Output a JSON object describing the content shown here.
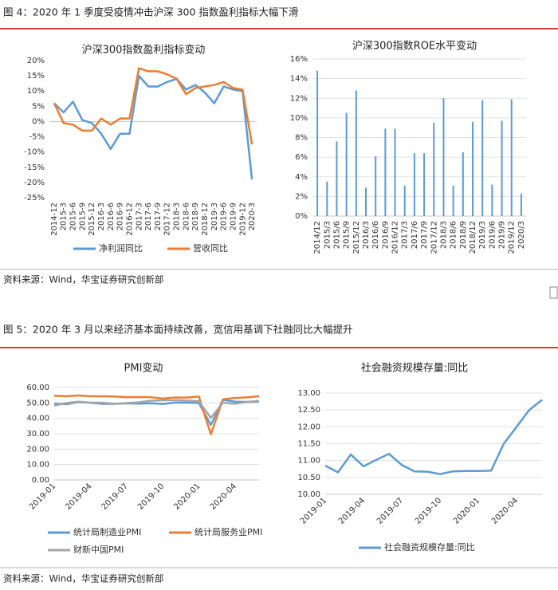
{
  "figures": [
    {
      "title": "图 4：2020 年 1 季度受疫情冲击沪深 300 指数盈利指标大幅下滑",
      "source": "资料来源：Wind，华宝证券研究创新部"
    },
    {
      "title": "图 5：2020 年 3 月以来经济基本面持续改善，宽信用基调下社融同比大幅提升",
      "source": "资料来源：Wind，华宝证券研究创新部"
    }
  ],
  "chart_data": [
    {
      "type": "line",
      "title": "沪深300指数盈利指标变动",
      "categories": [
        "2014-12",
        "2015-3",
        "2015-6",
        "2015-9",
        "2015-12",
        "2016-3",
        "2016-6",
        "2016-9",
        "2016-12",
        "2017-3",
        "2017-6",
        "2017-9",
        "2017-12",
        "2018-3",
        "2018-6",
        "2018-9",
        "2018-12",
        "2019-3",
        "2019-6",
        "2019-9",
        "2019-12",
        "2020-3"
      ],
      "series": [
        {
          "name": "净利润同比",
          "color": "#5b9bd5",
          "values": [
            6,
            3,
            6.5,
            0.5,
            -0.5,
            -4,
            -9,
            -4,
            -4,
            15,
            11.5,
            11.5,
            13,
            14,
            10.5,
            12,
            9.5,
            6,
            11.5,
            10.5,
            10,
            -19
          ]
        },
        {
          "name": "营收同比",
          "color": "#ed7d31",
          "values": [
            6,
            -0.5,
            -1,
            -3,
            -3,
            1,
            -1,
            1,
            1,
            17.5,
            16.5,
            16.5,
            15.5,
            14,
            9,
            11,
            11.5,
            12,
            13,
            11,
            10.5,
            -7.5
          ]
        }
      ],
      "ylim": [
        -25,
        20
      ],
      "yticks": [
        {
          "value": -25,
          "label": "-25%"
        },
        {
          "value": -20,
          "label": "-20%"
        },
        {
          "value": -15,
          "label": "-15%"
        },
        {
          "value": -10,
          "label": "-10%"
        },
        {
          "value": -5,
          "label": "-5%"
        },
        {
          "value": 0,
          "label": "0%"
        },
        {
          "value": 5,
          "label": "5%"
        },
        {
          "value": 10,
          "label": "10%"
        },
        {
          "value": 15,
          "label": "15%"
        },
        {
          "value": 20,
          "label": "20%"
        }
      ],
      "grid": false
    },
    {
      "type": "bar",
      "title": "沪深300指数ROE水平变动",
      "categories": [
        "2014/12",
        "2015/3",
        "2015/6",
        "2015/9",
        "2015/12",
        "2016/3",
        "2016/6",
        "2016/9",
        "2016/12",
        "2017/3",
        "2017/6",
        "2017/9",
        "2017/12",
        "2018/3",
        "2018/6",
        "2018/9",
        "2018/12",
        "2019/3",
        "2019/6",
        "2019/9",
        "2019/12",
        "2020/3"
      ],
      "values": [
        14.8,
        3.5,
        7.6,
        10.5,
        12.8,
        2.9,
        6.1,
        8.9,
        8.9,
        3.1,
        6.4,
        6.4,
        9.5,
        12.0,
        3.1,
        6.5,
        9.6,
        11.8,
        3.2,
        9.7,
        11.9,
        2.3
      ],
      "color": "#5b9bd5",
      "ylim": [
        0,
        16
      ],
      "yticks": [
        {
          "value": 0,
          "label": "0%"
        },
        {
          "value": 2,
          "label": "2%"
        },
        {
          "value": 4,
          "label": "4%"
        },
        {
          "value": 6,
          "label": "6%"
        },
        {
          "value": 8,
          "label": "8%"
        },
        {
          "value": 10,
          "label": "10%"
        },
        {
          "value": 12,
          "label": "12%"
        },
        {
          "value": 14,
          "label": "14%"
        },
        {
          "value": 16,
          "label": "16%"
        }
      ],
      "grid": true
    },
    {
      "type": "line",
      "title": "PMI变动",
      "categories": [
        "2019-01",
        null,
        null,
        "2019-04",
        null,
        null,
        "2019-07",
        null,
        null,
        "2019-10",
        null,
        null,
        "2020-01",
        null,
        null,
        "2020-04",
        null,
        null
      ],
      "series": [
        {
          "name": "统计局制造业PMI",
          "color": "#5b9bd5",
          "values": [
            49.5,
            49.2,
            50.5,
            50.1,
            49.4,
            49.4,
            49.7,
            49.5,
            49.8,
            49.3,
            50.2,
            50.2,
            50.0,
            35.7,
            52.0,
            50.8,
            50.6,
            50.9
          ]
        },
        {
          "name": "统计局服务业PMI",
          "color": "#ed7d31",
          "values": [
            54.7,
            54.3,
            54.8,
            54.3,
            54.3,
            54.2,
            53.7,
            53.8,
            53.7,
            52.8,
            53.5,
            53.5,
            54.1,
            29.6,
            52.3,
            53.2,
            53.6,
            54.4
          ]
        },
        {
          "name": "财新中国PMI",
          "color": "#a5a5a5",
          "values": [
            48.3,
            49.9,
            50.8,
            50.2,
            50.2,
            49.4,
            49.9,
            50.4,
            51.4,
            51.7,
            51.8,
            51.5,
            51.1,
            40.3,
            50.1,
            49.4,
            50.7,
            51.2
          ]
        }
      ],
      "ylim": [
        0,
        60
      ],
      "yticks": [
        {
          "value": 0,
          "label": "0.00"
        },
        {
          "value": 10,
          "label": "10.00"
        },
        {
          "value": 20,
          "label": "20.00"
        },
        {
          "value": 30,
          "label": "30.00"
        },
        {
          "value": 40,
          "label": "40.00"
        },
        {
          "value": 50,
          "label": "50.00"
        },
        {
          "value": 60,
          "label": "60.00"
        }
      ],
      "grid": true
    },
    {
      "type": "line",
      "title": "社会融资规模存量:同比",
      "categories": [
        "2019-01",
        null,
        null,
        "2019-04",
        null,
        null,
        "2019-07",
        null,
        null,
        "2019-10",
        null,
        null,
        "2020-01",
        null,
        null,
        "2020-04",
        null,
        null
      ],
      "series": [
        {
          "name": "社会融资规模存量:同比",
          "color": "#5b9bd5",
          "values": [
            10.85,
            10.65,
            11.18,
            10.83,
            11.02,
            11.2,
            10.87,
            10.68,
            10.67,
            10.6,
            10.68,
            10.69,
            10.69,
            10.7,
            11.5,
            12.0,
            12.5,
            12.8
          ]
        }
      ],
      "ylim": [
        10,
        13
      ],
      "yticks": [
        {
          "value": 10,
          "label": "10.00"
        },
        {
          "value": 10.5,
          "label": "10.50"
        },
        {
          "value": 11,
          "label": "11.00"
        },
        {
          "value": 11.5,
          "label": "11.50"
        },
        {
          "value": 12,
          "label": "12.00"
        },
        {
          "value": 12.5,
          "label": "12.50"
        },
        {
          "value": 13,
          "label": "13.00"
        }
      ],
      "grid": true
    }
  ]
}
